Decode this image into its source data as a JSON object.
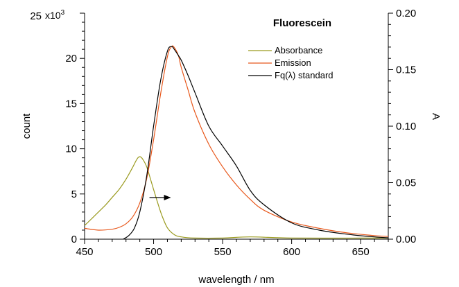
{
  "chart_data": {
    "type": "line",
    "title": "Fluorescein",
    "xlabel": "wavelength / nm",
    "ylabel_left": "count",
    "ylabel_right": "A",
    "left_axis_multiplier": "x10",
    "left_axis_multiplier_exp": "3",
    "xlim": [
      450,
      670
    ],
    "ylim_left": [
      0,
      25000
    ],
    "ylim_right": [
      0,
      0.2
    ],
    "x_ticks": [
      450,
      500,
      550,
      600,
      650
    ],
    "x_tick_labels": [
      "450",
      "500",
      "550",
      "600",
      "650"
    ],
    "left_ticks": [
      0,
      5000,
      10000,
      15000,
      20000,
      25000
    ],
    "left_tick_labels": [
      "0",
      "5",
      "10",
      "15",
      "20",
      "25"
    ],
    "right_ticks": [
      0,
      0.05,
      0.1,
      0.15,
      0.2
    ],
    "right_tick_labels": [
      "0.00",
      "0.05",
      "0.10",
      "0.15",
      "0.20"
    ],
    "grid": false,
    "legend_position": "top-right",
    "series": [
      {
        "name": "Absorbance",
        "axis": "right",
        "color": "#9a9a1e",
        "x": [
          450,
          455,
          460,
          465,
          470,
          475,
          480,
          485,
          488,
          490,
          492,
          495,
          498,
          500,
          503,
          506,
          510,
          515,
          520,
          530,
          550,
          570,
          600,
          650,
          670
        ],
        "y": [
          0.012,
          0.018,
          0.024,
          0.03,
          0.037,
          0.044,
          0.053,
          0.064,
          0.071,
          0.073,
          0.071,
          0.064,
          0.052,
          0.044,
          0.032,
          0.021,
          0.01,
          0.004,
          0.002,
          0.001,
          0.001,
          0.002,
          0.001,
          0.001,
          0.001
        ]
      },
      {
        "name": "Emission",
        "axis": "left",
        "color": "#e8581c",
        "x": [
          450,
          460,
          470,
          475,
          480,
          485,
          490,
          495,
          500,
          505,
          510,
          513,
          515,
          518,
          520,
          525,
          530,
          540,
          550,
          560,
          570,
          580,
          600,
          620,
          640,
          660,
          670
        ],
        "y": [
          1200,
          1000,
          1100,
          1300,
          1700,
          2500,
          4000,
          6700,
          11000,
          16000,
          20200,
          21300,
          21200,
          20300,
          19000,
          16500,
          14000,
          10500,
          8000,
          6000,
          4400,
          3200,
          1900,
          1200,
          700,
          400,
          300
        ]
      },
      {
        "name": "Fq(λ) standard",
        "axis": "left",
        "color": "#000000",
        "x": [
          478,
          482,
          486,
          490,
          495,
          500,
          505,
          510,
          513,
          515,
          518,
          520,
          525,
          530,
          540,
          550,
          560,
          570,
          580,
          600,
          620,
          640,
          660,
          670
        ],
        "y": [
          0,
          400,
          1200,
          3000,
          7000,
          12500,
          17500,
          20800,
          21300,
          21000,
          20300,
          19800,
          18100,
          16200,
          12500,
          10300,
          8100,
          5400,
          3800,
          1800,
          1000,
          550,
          250,
          150
        ]
      }
    ],
    "annotations": [
      {
        "type": "arrow",
        "from_x": 497,
        "to_x": 512,
        "y_left": 4600,
        "direction": "right"
      }
    ]
  }
}
